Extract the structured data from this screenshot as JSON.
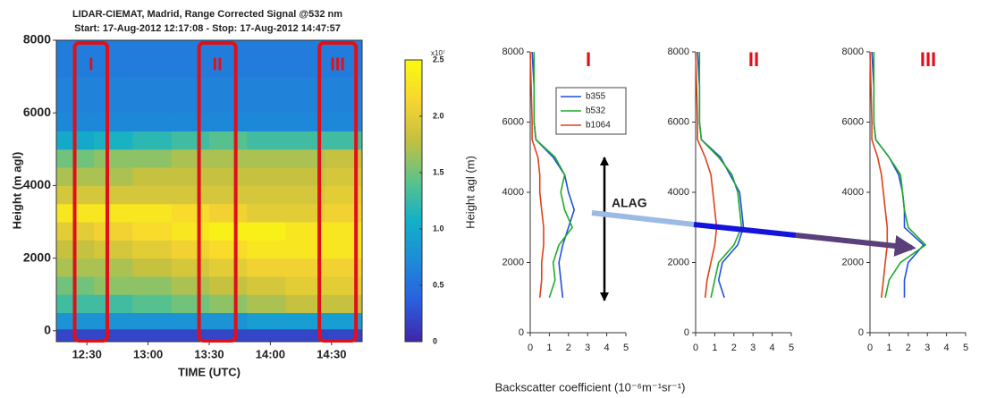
{
  "chart_data": [
    {
      "type": "heatmap",
      "title": "LIDAR-CIEMAT, Madrid, Range Corrected Signal @532 nm",
      "subtitle": "Start: 17-Aug-2012 12:17:08 - Stop: 17-Aug-2012 14:47:57",
      "xlabel": "TIME (UTC)",
      "ylabel": "Height (m agl)",
      "xlim": [
        15,
        165
      ],
      "xticks": [
        {
          "value": 30,
          "label": "12:30"
        },
        {
          "value": 60,
          "label": "13:00"
        },
        {
          "value": 90,
          "label": "13:30"
        },
        {
          "value": 120,
          "label": "14:00"
        },
        {
          "value": 150,
          "label": "14:30"
        }
      ],
      "ylim": [
        -300,
        8000
      ],
      "yticks": [
        0,
        2000,
        4000,
        6000,
        8000
      ],
      "x": [
        24,
        43,
        62,
        81,
        99,
        118,
        137,
        156
      ],
      "y": [
        -150,
        250,
        750,
        1250,
        1750,
        2250,
        2750,
        3250,
        3750,
        4250,
        4750,
        5250,
        5750,
        6250,
        6750,
        7250,
        7750
      ],
      "z": [
        [
          0.2,
          0.2,
          0.2,
          0.2,
          0.2,
          0.2,
          0.2,
          0.2
        ],
        [
          0.8,
          0.8,
          0.8,
          0.8,
          0.8,
          0.9,
          0.9,
          0.9
        ],
        [
          1.3,
          1.3,
          1.4,
          1.5,
          1.6,
          1.7,
          1.8,
          1.8
        ],
        [
          1.5,
          1.6,
          1.6,
          1.7,
          1.8,
          1.9,
          2.0,
          2.0
        ],
        [
          1.7,
          1.7,
          1.8,
          1.9,
          2.0,
          2.1,
          2.1,
          2.1
        ],
        [
          1.8,
          1.9,
          2.0,
          2.1,
          2.2,
          2.3,
          2.3,
          2.3
        ],
        [
          2.0,
          2.1,
          2.2,
          2.3,
          2.4,
          2.4,
          2.3,
          2.3
        ],
        [
          2.3,
          2.3,
          2.3,
          2.2,
          2.1,
          2.0,
          2.0,
          2.1
        ],
        [
          1.9,
          1.9,
          1.9,
          1.9,
          1.9,
          1.9,
          1.9,
          2.0
        ],
        [
          1.7,
          1.7,
          1.8,
          1.8,
          1.8,
          1.8,
          1.8,
          1.9
        ],
        [
          1.5,
          1.6,
          1.6,
          1.7,
          1.7,
          1.7,
          1.7,
          1.8
        ],
        [
          1.0,
          1.1,
          1.2,
          1.3,
          1.4,
          1.3,
          1.3,
          1.3
        ],
        [
          0.7,
          0.7,
          0.7,
          0.7,
          0.7,
          0.7,
          0.7,
          0.7
        ],
        [
          0.65,
          0.65,
          0.65,
          0.65,
          0.65,
          0.65,
          0.65,
          0.65
        ],
        [
          0.65,
          0.65,
          0.65,
          0.65,
          0.65,
          0.65,
          0.65,
          0.65
        ],
        [
          0.6,
          0.6,
          0.6,
          0.6,
          0.6,
          0.6,
          0.6,
          0.6
        ],
        [
          0.6,
          0.6,
          0.6,
          0.6,
          0.6,
          0.6,
          0.6,
          0.6
        ]
      ],
      "clim": [
        0,
        2.5
      ],
      "cticks": [
        0,
        0.5,
        {
          "value": 1,
          "label": "1.0"
        },
        1.5,
        {
          "value": 2,
          "label": "2.0"
        },
        2.5
      ],
      "cscale_label": "x10⁷",
      "colormap": [
        "#3e26a8",
        "#2a5fe0",
        "#1e8ad8",
        "#12b0c8",
        "#5cc38a",
        "#c4c040",
        "#f8d530",
        "#f9fb0e"
      ],
      "regions": [
        {
          "label": "I",
          "xlim": [
            24,
            40
          ]
        },
        {
          "label": "II",
          "xlim": [
            85,
            103
          ]
        },
        {
          "label": "III",
          "xlim": [
            144,
            162
          ]
        }
      ],
      "region_color": "#e0101a"
    },
    {
      "type": "line",
      "title": "I",
      "title_color": "#e0101a",
      "ylabel": "Height agl (m)",
      "xlabel": "Backscatter coefficient (10⁻⁶m⁻¹sr⁻¹)",
      "annotation": "ALAG",
      "legend": true,
      "y": [
        1000,
        1500,
        2000,
        2500,
        3000,
        3500,
        4000,
        4500,
        5000,
        5500,
        6000,
        7000,
        8000
      ],
      "series": [
        {
          "name": "b355",
          "color": "#1f4fe0",
          "values": [
            1.7,
            1.6,
            1.5,
            1.7,
            2.0,
            2.3,
            2.0,
            1.8,
            1.2,
            0.3,
            0.2,
            0.2,
            0.1
          ]
        },
        {
          "name": "b532",
          "color": "#1faa2a",
          "values": [
            1.0,
            1.3,
            1.2,
            1.5,
            2.2,
            1.8,
            1.6,
            1.8,
            1.3,
            0.3,
            0.2,
            0.2,
            0.2
          ]
        },
        {
          "name": "b1064",
          "color": "#e0401a",
          "values": [
            0.5,
            0.6,
            0.6,
            0.7,
            0.7,
            0.6,
            0.5,
            0.5,
            0.4,
            0.1,
            0.1,
            0.05,
            0
          ]
        }
      ],
      "xlim": [
        0,
        5
      ],
      "xticks": [
        0,
        1,
        2,
        3,
        4,
        5
      ],
      "ylim": [
        0,
        8000
      ],
      "yticks": [
        0,
        2000,
        4000,
        6000,
        8000
      ]
    },
    {
      "type": "line",
      "title": "II",
      "title_color": "#e0101a",
      "y": [
        1000,
        1500,
        2000,
        2500,
        3000,
        3500,
        4000,
        4500,
        5000,
        5500,
        6000,
        7000,
        8000
      ],
      "series": [
        {
          "color": "#1f4fe0",
          "values": [
            1.5,
            1.2,
            1.4,
            2.2,
            2.5,
            2.4,
            2.3,
            1.8,
            1.3,
            0.3,
            0.2,
            0.2,
            0.1
          ]
        },
        {
          "color": "#1faa2a",
          "values": [
            0.8,
            1.0,
            1.2,
            2.0,
            2.4,
            2.3,
            2.2,
            1.9,
            1.2,
            0.3,
            0.2,
            0.2,
            0.2
          ]
        },
        {
          "color": "#e0401a",
          "values": [
            0.5,
            0.6,
            0.8,
            1.0,
            1.1,
            1.0,
            0.9,
            0.8,
            0.5,
            0.1,
            0.1,
            0.05,
            0
          ]
        }
      ],
      "xlim": [
        0,
        5
      ],
      "xticks": [
        0,
        1,
        2,
        3,
        4,
        5
      ],
      "ylim": [
        0,
        8000
      ],
      "yticks": [
        0,
        2000,
        4000,
        6000,
        8000
      ]
    },
    {
      "type": "line",
      "title": "III",
      "title_color": "#e0101a",
      "y": [
        1000,
        1500,
        2000,
        2500,
        3000,
        3500,
        4000,
        4500,
        5000,
        5500,
        6000,
        7000,
        8000
      ],
      "series": [
        {
          "color": "#1f4fe0",
          "values": [
            1.8,
            1.8,
            2.0,
            2.8,
            1.8,
            1.8,
            1.7,
            1.5,
            1.0,
            0.3,
            0.2,
            0.2,
            0.1
          ]
        },
        {
          "color": "#1faa2a",
          "values": [
            0.8,
            1.0,
            1.6,
            2.9,
            2.0,
            1.8,
            1.7,
            1.6,
            1.0,
            0.3,
            0.2,
            0.2,
            0.2
          ]
        },
        {
          "color": "#e0401a",
          "values": [
            0.6,
            0.7,
            0.8,
            0.9,
            0.9,
            0.8,
            0.7,
            0.6,
            0.4,
            0.1,
            0.1,
            0.05,
            0
          ]
        }
      ],
      "xlim": [
        0,
        5
      ],
      "xticks": [
        0,
        1,
        2,
        3,
        4,
        5
      ],
      "ylim": [
        0,
        8000
      ],
      "yticks": [
        0,
        2000,
        4000,
        6000,
        8000
      ]
    }
  ]
}
